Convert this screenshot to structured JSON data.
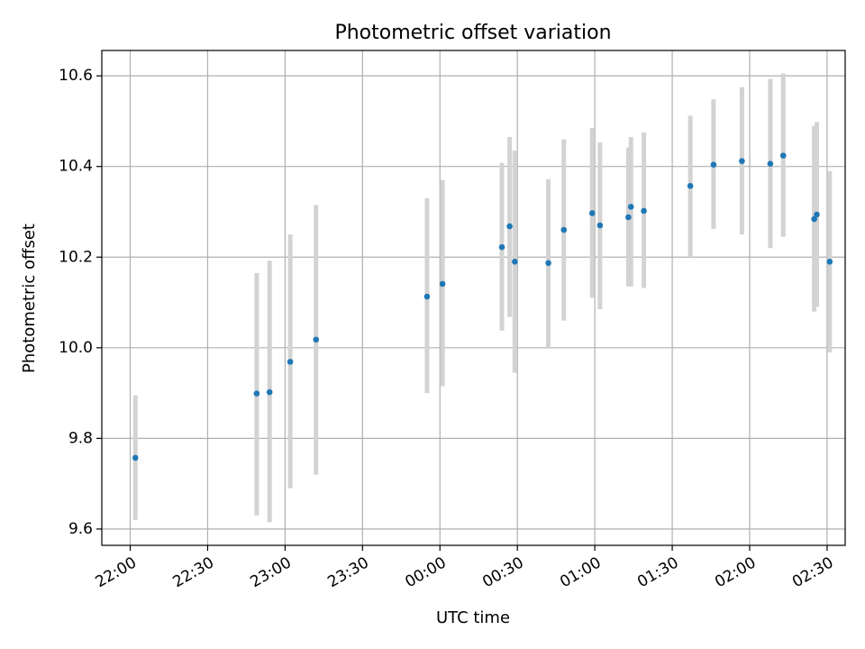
{
  "chart_data": {
    "type": "scatter",
    "title": "Photometric offset variation",
    "xlabel": "UTC time",
    "ylabel": "Photometric offset",
    "x_ticks": [
      "22:00",
      "22:30",
      "23:00",
      "23:30",
      "00:00",
      "00:30",
      "01:00",
      "01:30",
      "02:00",
      "02:30"
    ],
    "xlim": [
      "21:49",
      "02:37"
    ],
    "y_ticks": [
      "9.6",
      "9.8",
      "10.0",
      "10.2",
      "10.4",
      "10.6"
    ],
    "ylim": [
      9.564,
      10.656
    ],
    "grid": true,
    "error_bar_color": "#d3d3d3",
    "point_color": "#1f77b4",
    "series": [
      {
        "x": [
          "22:02",
          "22:49",
          "22:54",
          "23:02",
          "23:12",
          "23:55",
          "24:01",
          "24:24",
          "24:27",
          "24:29",
          "24:42",
          "24:48",
          "24:59",
          "25:02",
          "25:13",
          "25:14",
          "25:19",
          "25:37",
          "25:46",
          "25:57",
          "26:08",
          "26:13",
          "26:25",
          "26:26",
          "26:31"
        ],
        "y": [
          9.757,
          9.899,
          9.902,
          9.969,
          10.018,
          10.113,
          10.141,
          10.222,
          10.268,
          10.19,
          10.187,
          10.26,
          10.297,
          10.27,
          10.288,
          10.311,
          10.302,
          10.357,
          10.404,
          10.412,
          10.406,
          10.424,
          10.284,
          10.294,
          10.19
        ],
        "err_low": [
          9.62,
          9.63,
          9.615,
          9.69,
          9.72,
          9.9,
          9.915,
          10.038,
          10.068,
          9.945,
          10.0,
          10.06,
          10.11,
          10.085,
          10.135,
          10.135,
          10.132,
          10.2,
          10.262,
          10.25,
          10.22,
          10.245,
          10.08,
          10.09,
          9.99
        ],
        "err_high": [
          9.895,
          10.165,
          10.192,
          10.25,
          10.315,
          10.33,
          10.37,
          10.408,
          10.465,
          10.435,
          10.372,
          10.46,
          10.485,
          10.453,
          10.442,
          10.465,
          10.475,
          10.512,
          10.548,
          10.575,
          10.593,
          10.605,
          10.49,
          10.498,
          10.39
        ]
      }
    ]
  }
}
